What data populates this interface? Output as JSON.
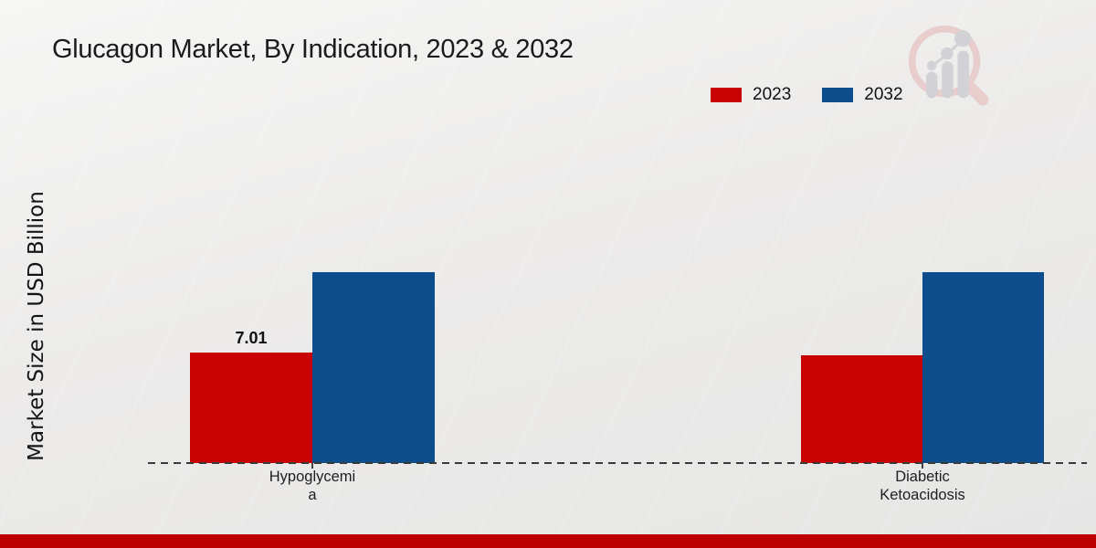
{
  "page": {
    "title": "Glucagon Market, By Indication, 2023 & 2032"
  },
  "legend": {
    "items": [
      {
        "label": "2023",
        "color": "#c80202"
      },
      {
        "label": "2032",
        "color": "#0d4d8c"
      }
    ]
  },
  "y_axis": {
    "label": "Market Size in USD Billion"
  },
  "chart_data": {
    "type": "bar",
    "title": "Glucagon Market, By Indication, 2023 & 2032",
    "ylabel": "Market Size in USD Billion",
    "xlabel": "",
    "categories": [
      "Hypoglycemia",
      "Diabetic Ketoacidosis"
    ],
    "category_label_lines": [
      [
        "Hypoglycemi",
        "a"
      ],
      [
        "Diabetic",
        "Ketoacidosis"
      ]
    ],
    "series": [
      {
        "name": "2023",
        "color": "#c80202",
        "values": [
          7.01,
          6.85
        ]
      },
      {
        "name": "2032",
        "color": "#0d4d8c",
        "values": [
          12.1,
          12.1
        ]
      }
    ],
    "value_labels": [
      {
        "series": "2023",
        "category": "Hypoglycemia",
        "text": "7.01"
      }
    ],
    "ylim": [
      0,
      14
    ],
    "grid": false,
    "legend_position": "top-right",
    "baseline_style": "dashed"
  },
  "watermark": {
    "icon": "magnifier-bar-chart-logo",
    "ring_color": "#e7c3c3",
    "bars_color": "#c9c9cf"
  },
  "footer": {
    "accent_color": "#bd0000"
  }
}
